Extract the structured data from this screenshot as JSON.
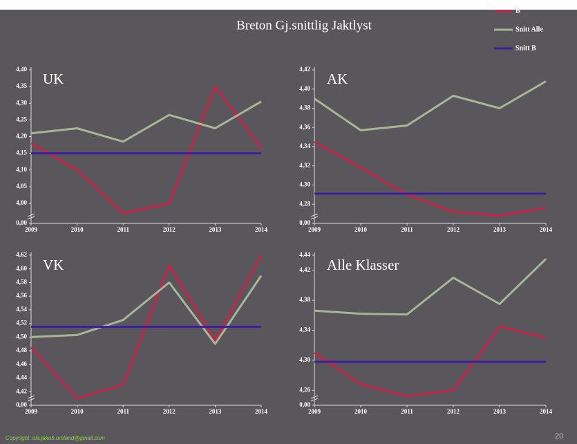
{
  "page": {
    "title": "Breton Gj.snittlig Jaktlyst",
    "copyright": "Copyright: ola.jakob.omland@gmail.com",
    "page_number": "20"
  },
  "chart_data": [
    {
      "type": "line",
      "title": "UK",
      "categories": [
        "2009",
        "2010",
        "2011",
        "2012",
        "2013",
        "2014"
      ],
      "series": [
        {
          "name": "B",
          "color": "#c8234a",
          "values": [
            4.18,
            4.1,
            3.97,
            4.0,
            4.35,
            4.165
          ]
        },
        {
          "name": "Snitt Alle",
          "color": "#a7b795",
          "values": [
            4.21,
            4.225,
            4.185,
            4.265,
            4.225,
            4.305
          ]
        },
        {
          "name": "Snitt B",
          "color": "#3c1ea0",
          "values": [
            4.15,
            4.15,
            4.15,
            4.15,
            4.15,
            4.15
          ]
        }
      ],
      "ylim": [
        3.94,
        4.4
      ],
      "axis_break": true,
      "yticks": [
        {
          "value": 0,
          "label": "0,00"
        },
        {
          "value": 4.0,
          "label": "4,00"
        },
        {
          "value": 4.05,
          "label": "4,05"
        },
        {
          "value": 4.1,
          "label": "4,10"
        },
        {
          "value": 4.15,
          "label": "4,15"
        },
        {
          "value": 4.2,
          "label": "4,20"
        },
        {
          "value": 4.25,
          "label": "4,25"
        },
        {
          "value": 4.3,
          "label": "4,30"
        },
        {
          "value": 4.35,
          "label": "4,35"
        },
        {
          "value": 4.4,
          "label": "4,40"
        }
      ]
    },
    {
      "type": "line",
      "title": "AK",
      "categories": [
        "2009",
        "2010",
        "2011",
        "2012",
        "2013",
        "2014"
      ],
      "series": [
        {
          "name": "B",
          "color": "#c8234a",
          "values": [
            4.345,
            4.318,
            4.29,
            4.272,
            4.268,
            4.276
          ]
        },
        {
          "name": "Snitt Alle",
          "color": "#a7b795",
          "values": [
            4.39,
            4.357,
            4.362,
            4.393,
            4.38,
            4.408
          ]
        },
        {
          "name": "Snitt B",
          "color": "#3c1ea0",
          "values": [
            4.291,
            4.291,
            4.291,
            4.291,
            4.291,
            4.291
          ]
        }
      ],
      "ylim": [
        4.26,
        4.42
      ],
      "axis_break": true,
      "yticks": [
        {
          "value": 0,
          "label": "0,00"
        },
        {
          "value": 4.28,
          "label": "4,28"
        },
        {
          "value": 4.3,
          "label": "4,30"
        },
        {
          "value": 4.32,
          "label": "4,32"
        },
        {
          "value": 4.34,
          "label": "4,34"
        },
        {
          "value": 4.36,
          "label": "4,36"
        },
        {
          "value": 4.38,
          "label": "4,38"
        },
        {
          "value": 4.4,
          "label": "4,40"
        },
        {
          "value": 4.42,
          "label": "4,42"
        }
      ]
    },
    {
      "type": "line",
      "title": "VK",
      "categories": [
        "2009",
        "2010",
        "2011",
        "2012",
        "2013",
        "2014"
      ],
      "series": [
        {
          "name": "B",
          "color": "#c8234a",
          "values": [
            4.485,
            4.41,
            4.43,
            4.605,
            4.495,
            4.62
          ]
        },
        {
          "name": "Snitt Alle",
          "color": "#a7b795",
          "values": [
            4.5,
            4.503,
            4.525,
            4.58,
            4.49,
            4.59
          ]
        },
        {
          "name": "Snitt B",
          "color": "#3c1ea0",
          "values": [
            4.515,
            4.515,
            4.515,
            4.515,
            4.515,
            4.515
          ]
        }
      ],
      "ylim": [
        4.4,
        4.62
      ],
      "axis_break": true,
      "yticks": [
        {
          "value": 0,
          "label": "0,00"
        },
        {
          "value": 4.42,
          "label": "4,42"
        },
        {
          "value": 4.44,
          "label": "4,44"
        },
        {
          "value": 4.46,
          "label": "4,46"
        },
        {
          "value": 4.48,
          "label": "4,48"
        },
        {
          "value": 4.5,
          "label": "4,50"
        },
        {
          "value": 4.52,
          "label": "4,52"
        },
        {
          "value": 4.54,
          "label": "4,54"
        },
        {
          "value": 4.56,
          "label": "4,56"
        },
        {
          "value": 4.58,
          "label": "4,58"
        },
        {
          "value": 4.6,
          "label": "4,60"
        },
        {
          "value": 4.62,
          "label": "4,62"
        }
      ]
    },
    {
      "type": "line",
      "title": "Alle Klasser",
      "categories": [
        "2009",
        "2010",
        "2011",
        "2012",
        "2013",
        "2014"
      ],
      "series": [
        {
          "name": "B",
          "color": "#c8234a",
          "values": [
            4.31,
            4.268,
            4.252,
            4.26,
            4.345,
            4.33
          ]
        },
        {
          "name": "Snitt Alle",
          "color": "#a7b795",
          "values": [
            4.366,
            4.362,
            4.361,
            4.41,
            4.375,
            4.435
          ]
        },
        {
          "name": "Snitt B",
          "color": "#3c1ea0",
          "values": [
            4.298,
            4.298,
            4.298,
            4.298,
            4.298,
            4.298
          ]
        }
      ],
      "ylim": [
        4.24,
        4.44
      ],
      "axis_break": true,
      "yticks": [
        {
          "value": 0,
          "label": "0,00"
        },
        {
          "value": 4.26,
          "label": "4,26"
        },
        {
          "value": 4.3,
          "label": "4,30"
        },
        {
          "value": 4.34,
          "label": "4,34"
        },
        {
          "value": 4.38,
          "label": "4,38"
        },
        {
          "value": 4.42,
          "label": "4,42"
        },
        {
          "value": 4.44,
          "label": "4,44"
        }
      ]
    }
  ]
}
